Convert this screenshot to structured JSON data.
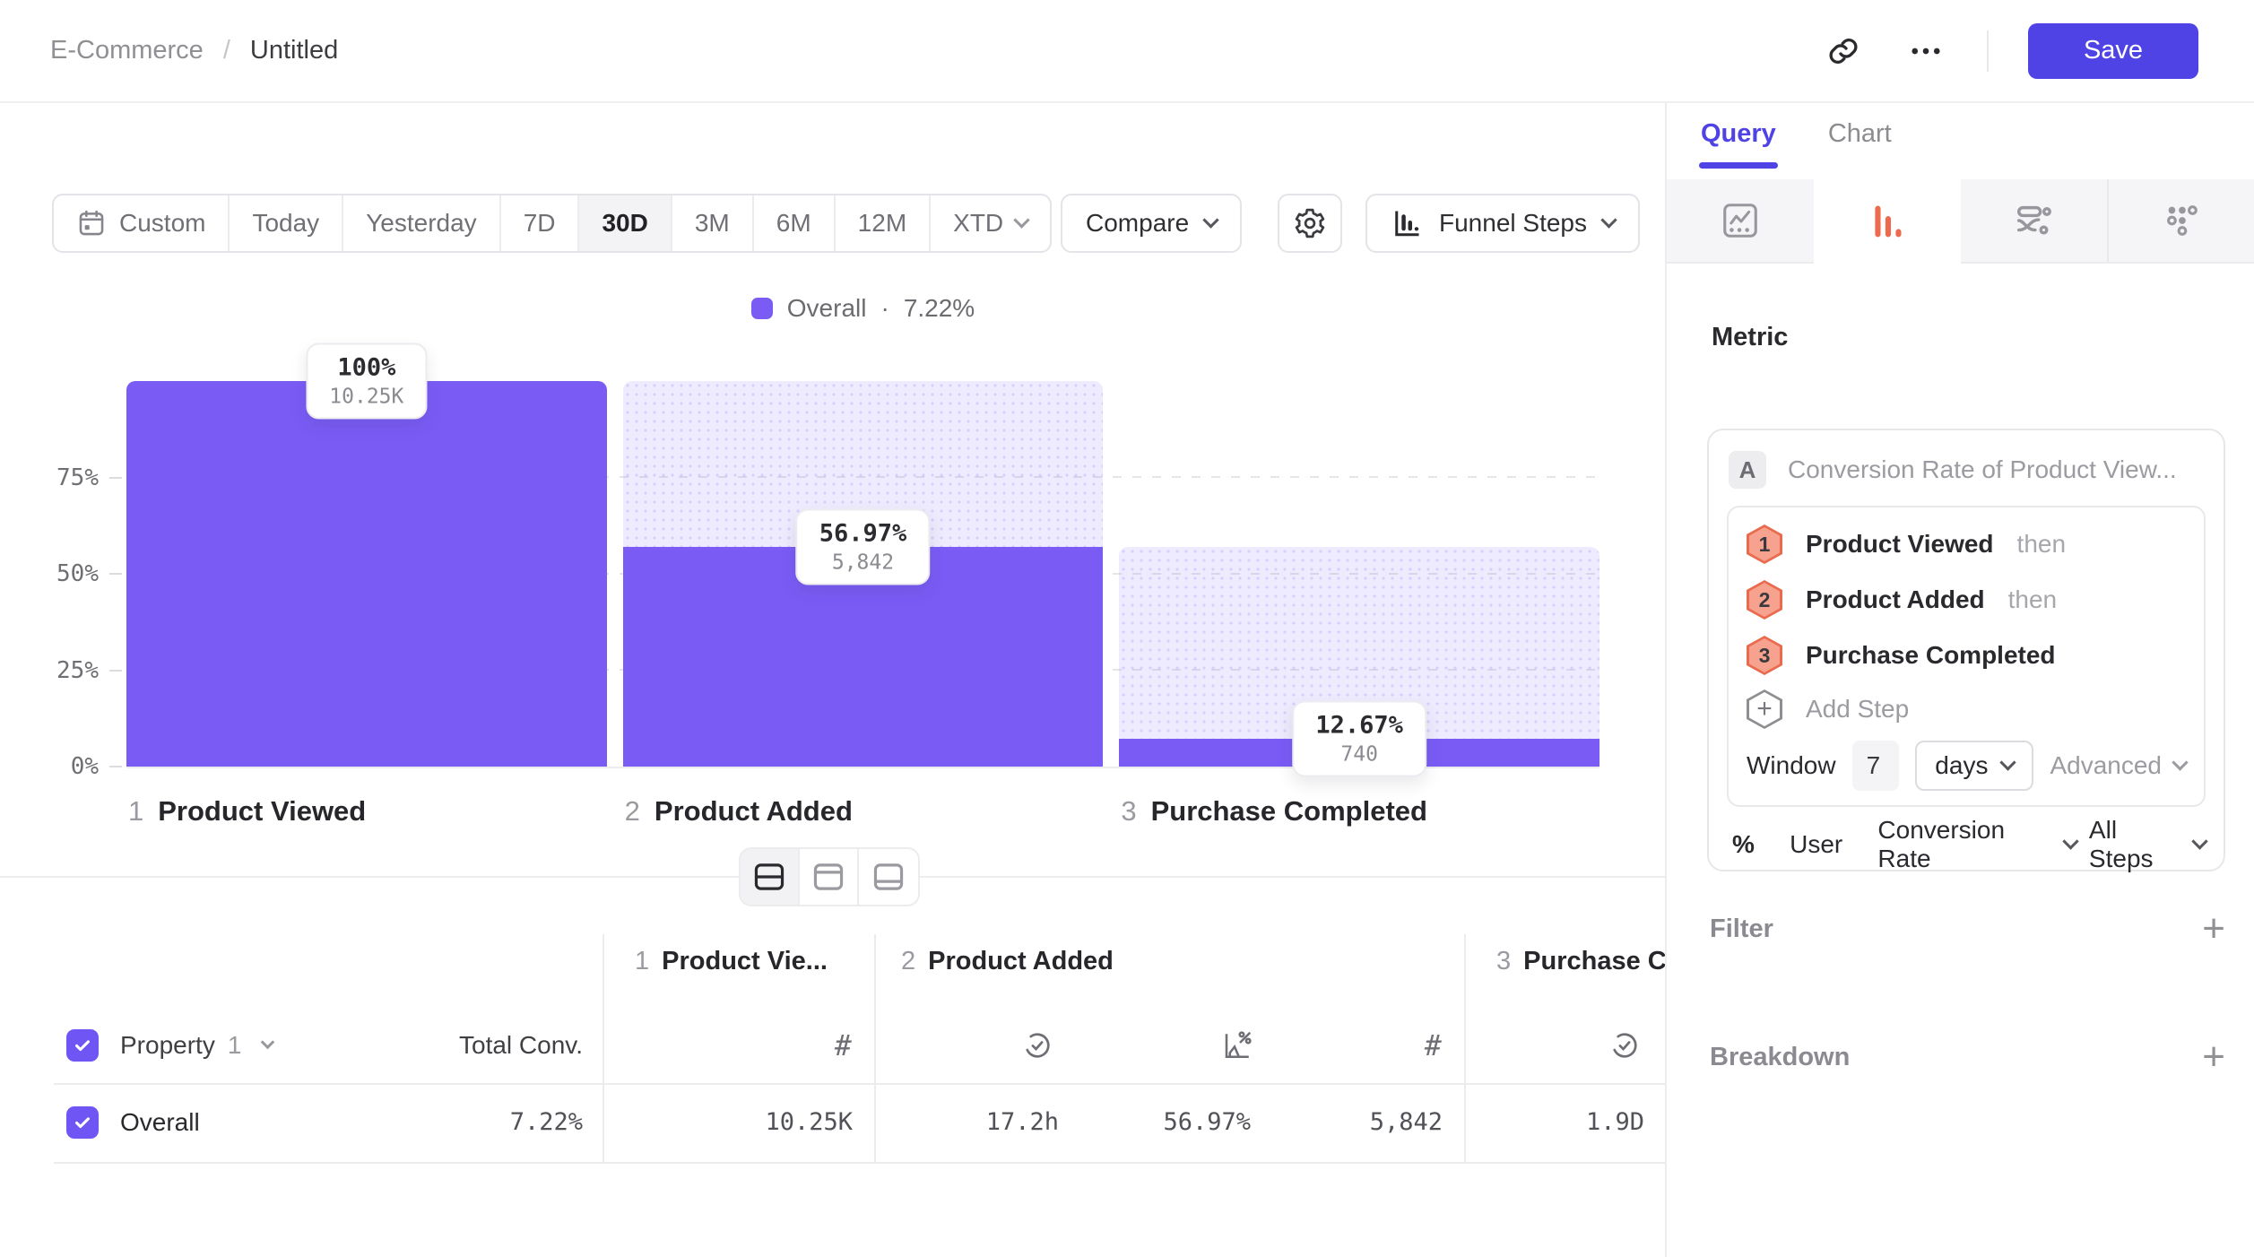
{
  "colors": {
    "brand_purple": "#4f43e6",
    "bar_purple": "#7a5cf5",
    "accent_orange": "#e96a4c"
  },
  "header": {
    "breadcrumb": {
      "project": "E-Commerce",
      "separator": "/",
      "title": "Untitled"
    },
    "save_label": "Save"
  },
  "toolbar": {
    "date_ranges": [
      {
        "label": "Custom",
        "icon": "calendar"
      },
      {
        "label": "Today"
      },
      {
        "label": "Yesterday"
      },
      {
        "label": "7D"
      },
      {
        "label": "30D",
        "selected": true
      },
      {
        "label": "3M"
      },
      {
        "label": "6M"
      },
      {
        "label": "12M"
      },
      {
        "label": "XTD",
        "chevron": true
      }
    ],
    "compare_label": "Compare",
    "chart_type_label": "Funnel Steps"
  },
  "legend": {
    "label": "Overall",
    "separator": "·",
    "value": "7.22%"
  },
  "chart_data": {
    "type": "bar",
    "subtype": "funnel-steps",
    "categories": [
      "Product Viewed",
      "Product Added",
      "Purchase Completed"
    ],
    "series": [
      {
        "name": "Overall",
        "overall_conversion": "7.22%",
        "counts": [
          10250,
          5842,
          740
        ],
        "count_labels": [
          "10.25K",
          "5,842",
          "740"
        ],
        "pct_labels": [
          "100%",
          "56.97%",
          "12.67%"
        ],
        "conversion_from_previous_pct": [
          100,
          56.97,
          12.67
        ],
        "conversion_from_start_pct": [
          100,
          56.97,
          7.22
        ]
      }
    ],
    "y_ticks": [
      "75%",
      "50%",
      "25%",
      "0%"
    ],
    "ylim": [
      0,
      100
    ],
    "grid": "dashed-horizontal",
    "legend_position": "top-center"
  },
  "table": {
    "property_header": {
      "label": "Property",
      "index": "1"
    },
    "total_conv_header": "Total Conv.",
    "groups": [
      {
        "num": "1",
        "label": "Product Vie..."
      },
      {
        "num": "2",
        "label": "Product Added"
      },
      {
        "num": "3",
        "label": "Purchase C"
      }
    ],
    "row": {
      "label": "Overall",
      "total_conv": "7.22%",
      "cells": [
        "10.25K",
        "17.2h",
        "56.97%",
        "5,842",
        "1.9D"
      ]
    }
  },
  "panel": {
    "tabs": {
      "query": "Query",
      "chart": "Chart"
    },
    "metric_heading": "Metric",
    "metric": {
      "badge": "A",
      "title": "Conversion Rate of Product View...",
      "steps": [
        {
          "num": "1",
          "label": "Product Viewed",
          "suffix": "then"
        },
        {
          "num": "2",
          "label": "Product Added",
          "suffix": "then"
        },
        {
          "num": "3",
          "label": "Purchase Completed",
          "suffix": ""
        }
      ],
      "add_step_label": "Add Step",
      "window": {
        "label": "Window",
        "value": "7",
        "unit": "days",
        "advanced_label": "Advanced"
      },
      "measured_as": {
        "symbol": "%",
        "subject": "User",
        "metric": "Conversion Rate",
        "scope": "All Steps"
      }
    },
    "sections": {
      "filter": "Filter",
      "breakdown": "Breakdown"
    }
  }
}
